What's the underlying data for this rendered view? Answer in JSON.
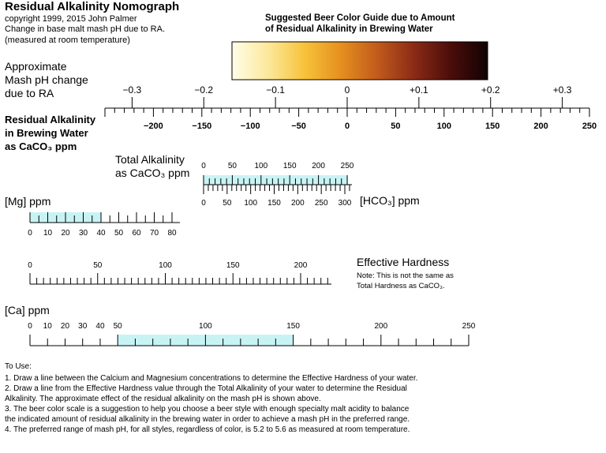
{
  "header": {
    "title": "Residual Alkalinity Nomograph",
    "copyright": "copyright 1999, 2015 John Palmer",
    "line1": "Change in base malt mash pH due to RA.",
    "line2": "(measured at room temperature)"
  },
  "legend": {
    "line1": "Suggested Beer Color Guide due to Amount",
    "line2": "of Residual Alkalinity in Brewing Water",
    "colors": [
      "#fffde8",
      "#fce89a",
      "#f7c23a",
      "#e58e1f",
      "#c05a1c",
      "#8a2a16",
      "#4a0d0a",
      "#120203"
    ]
  },
  "labels": {
    "ph1": "Approximate",
    "ph2": "Mash pH change",
    "ph3": "due to RA",
    "ra1": "Residual Alkalinity",
    "ra2": "in Brewing Water",
    "ra3": "as CaCO₃ ppm",
    "ta1": "Total Alkalinity",
    "ta2": "as CaCO₃ ppm",
    "hco3": "[HCO₃] ppm",
    "mg": "[Mg] ppm",
    "eh": "Effective Hardness",
    "note1": "Note: This is not the same as",
    "note2": "Total Hardness as CaCO₃.",
    "ca": "[Ca] ppm"
  },
  "scales": {
    "ph": [
      "−0.3",
      "−0.2",
      "−0.1",
      "0",
      "+0.1",
      "+0.2",
      "+0.3"
    ],
    "ra": [
      "−200",
      "−150",
      "−100",
      "−50",
      "0",
      "50",
      "100",
      "150",
      "200",
      "250"
    ],
    "ta": [
      "0",
      "50",
      "100",
      "150",
      "200",
      "250"
    ],
    "hco3": [
      "0",
      "50",
      "100",
      "150",
      "200",
      "250",
      "300"
    ],
    "mg": [
      "0",
      "10",
      "20",
      "30",
      "40",
      "50",
      "60",
      "70",
      "80"
    ],
    "eh": [
      "0",
      "50",
      "100",
      "150",
      "200"
    ],
    "ca": [
      "0",
      "10",
      "20",
      "30",
      "40",
      "50",
      "100",
      "150",
      "200",
      "250"
    ]
  },
  "highlight_color": "#c8f3f5",
  "instructions": {
    "heading": "To Use:",
    "items": [
      "1.   Draw a line between the Calcium and Magnesium concentrations to determine the Effective Hardness of your water.",
      "2.   Draw a line from the Effective Hardness value through the Total Alkalinity of your water to determine the Residual",
      "      Alkalinity. The approximate effect of the residual alkalinity on the mash pH is shown above.",
      "3.   The beer color scale is a suggestion to help you choose a beer style with enough specialty malt acidity to balance",
      "      the indicated amount of residual alkalinity in the brewing water in order to achieve a mash pH in the preferred range.",
      "4.   The preferred range of mash pH, for all styles, regardless of color, is 5.2 to 5.6 as measured at room temperature."
    ]
  }
}
